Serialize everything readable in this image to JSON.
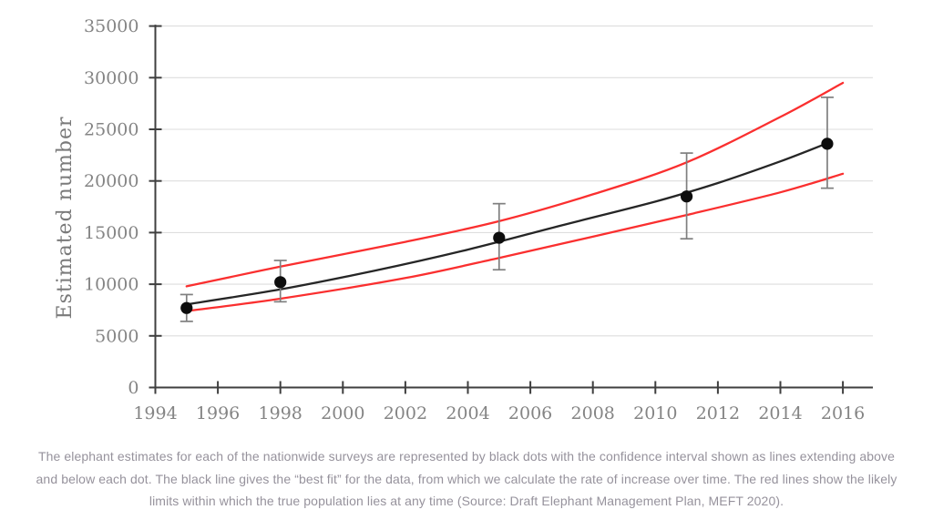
{
  "figure": {
    "caption_lines": [
      "The elephant estimates for each of the nationwide surveys are represented by black dots with the confidence interval shown as lines extending above",
      "and below each dot. The black line gives the “best fit” for the data, from which we calculate the rate of increase over time. The red lines show the likely",
      "limits within which the true population lies at any time (Source: Draft Elephant Management Plan, MEFT 2020)."
    ]
  },
  "chart_data": {
    "type": "scatter",
    "title": "",
    "xlabel": "",
    "ylabel": "Estimated number",
    "xlim": [
      1994,
      2017
    ],
    "ylim": [
      0,
      35000
    ],
    "x_ticks": [
      1994,
      1996,
      1998,
      2000,
      2002,
      2004,
      2006,
      2008,
      2010,
      2012,
      2014,
      2016
    ],
    "y_ticks": [
      0,
      5000,
      10000,
      15000,
      20000,
      25000,
      30000,
      35000
    ],
    "grid": "horizontal",
    "legend_position": "none",
    "colors": {
      "point": "#0d0d0d",
      "fit_line": "#262626",
      "limit_lines": "#fa2f2f",
      "error_bar": "#7f7f7f",
      "grid": "#dedede",
      "axis": "#3f3f3f",
      "tick_label": "#848484",
      "axis_title": "#7a7a7a"
    },
    "survey_points": [
      {
        "year": 1995,
        "estimate": 7700,
        "ci_low": 6400,
        "ci_high": 9000
      },
      {
        "year": 1998,
        "estimate": 10200,
        "ci_low": 8300,
        "ci_high": 12300
      },
      {
        "year": 2005,
        "estimate": 14500,
        "ci_low": 11400,
        "ci_high": 17800
      },
      {
        "year": 2011,
        "estimate": 18500,
        "ci_low": 14400,
        "ci_high": 22700
      },
      {
        "year": 2015.5,
        "estimate": 23600,
        "ci_low": 19300,
        "ci_high": 28100
      }
    ],
    "series": [
      {
        "name": "best-fit-line",
        "color_key": "fit_line",
        "points": [
          [
            1995,
            8050
          ],
          [
            1998,
            9500
          ],
          [
            2001,
            11300
          ],
          [
            2004,
            13350
          ],
          [
            2007,
            15700
          ],
          [
            2010,
            18000
          ],
          [
            2012,
            19800
          ],
          [
            2014,
            21900
          ],
          [
            2015.5,
            23650
          ]
        ]
      },
      {
        "name": "upper-likely-limit-line",
        "color_key": "limit_lines",
        "points": [
          [
            1995,
            9800
          ],
          [
            1998,
            11700
          ],
          [
            2002,
            14100
          ],
          [
            2005,
            16100
          ],
          [
            2008,
            18700
          ],
          [
            2011,
            21800
          ],
          [
            2014,
            26200
          ],
          [
            2016,
            29500
          ]
        ]
      },
      {
        "name": "lower-likely-limit-line",
        "color_key": "limit_lines",
        "points": [
          [
            1995,
            7400
          ],
          [
            1998,
            8600
          ],
          [
            2002,
            10600
          ],
          [
            2005,
            12550
          ],
          [
            2008,
            14600
          ],
          [
            2011,
            16700
          ],
          [
            2014,
            18900
          ],
          [
            2016,
            20700
          ]
        ]
      }
    ]
  }
}
